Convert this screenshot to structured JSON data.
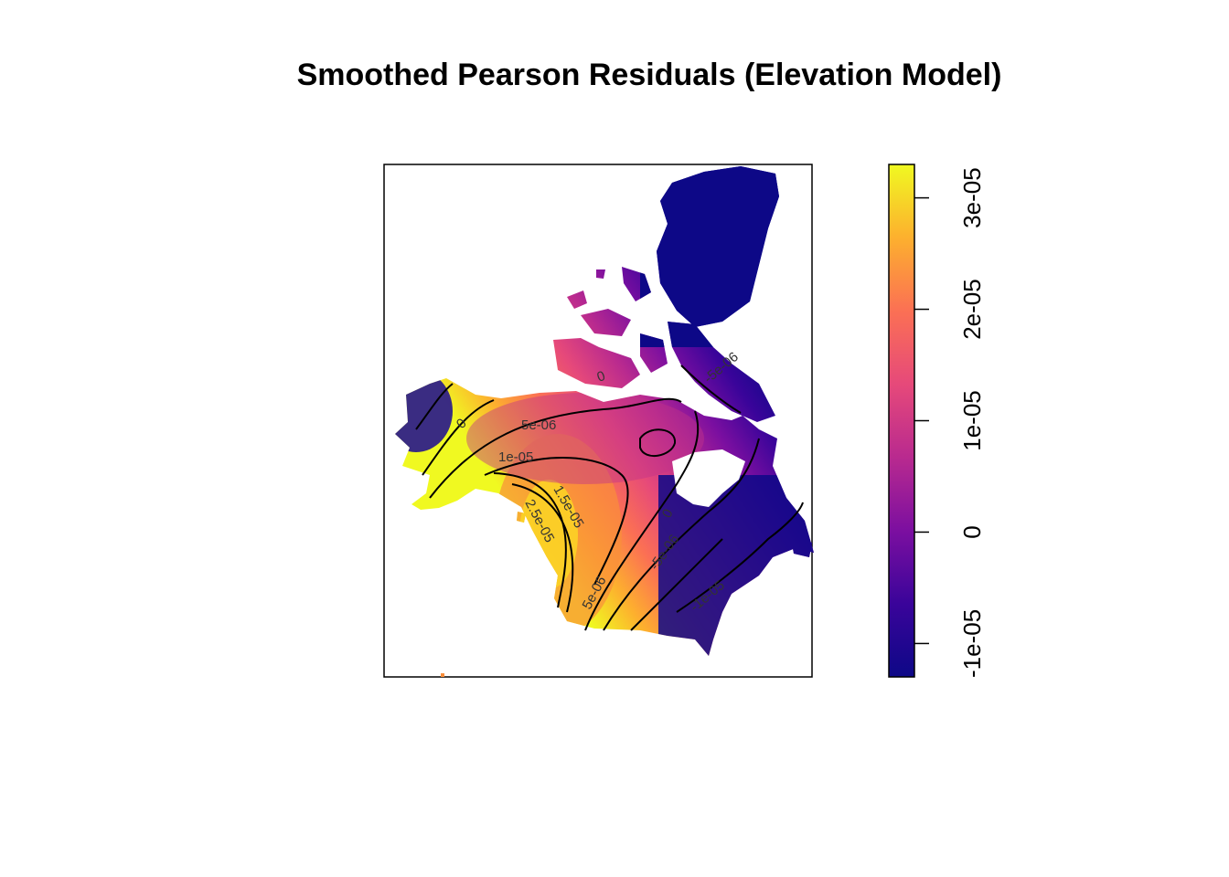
{
  "chart_data": {
    "type": "heatmap",
    "title": "Smoothed Pearson Residuals (Elevation Model)",
    "xlabel": "",
    "ylabel": "",
    "region": "Canada",
    "colorbar": {
      "range": [
        -1.3e-05,
        3.3e-05
      ],
      "colors": [
        "#0d0887",
        "#3a049a",
        "#7c0fa0",
        "#b92a8f",
        "#e6497a",
        "#fb7054",
        "#fdb02e",
        "#f0f921"
      ],
      "ticks": [
        {
          "value": -1e-05,
          "label": "-1e-05"
        },
        {
          "value": 0,
          "label": "0"
        },
        {
          "value": 1e-05,
          "label": "1e-05"
        },
        {
          "value": 2e-05,
          "label": "2e-05"
        },
        {
          "value": 3e-05,
          "label": "3e-05"
        }
      ]
    },
    "contour_labels": [
      "0",
      "5e-06",
      "1e-05",
      "1.5e-05",
      "2.5e-05",
      "0",
      "5e-06",
      "-5e-06",
      "0",
      "-5e-06",
      "-1e-05"
    ]
  }
}
